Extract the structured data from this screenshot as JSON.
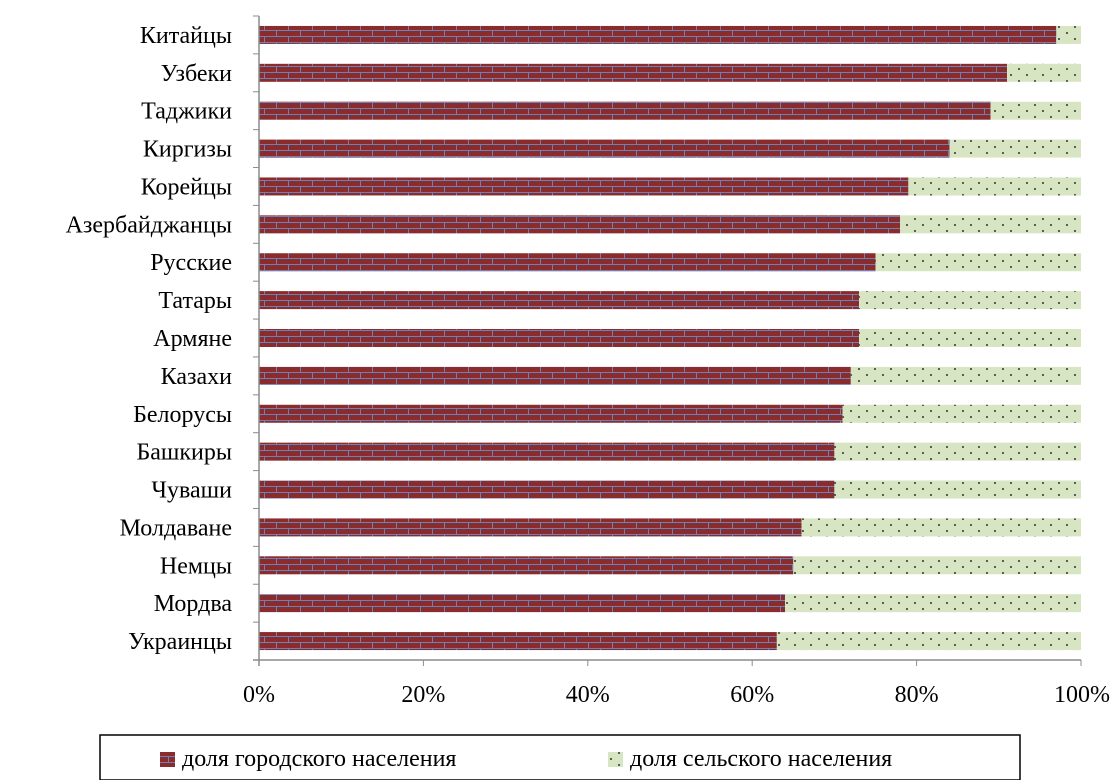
{
  "chart_data": {
    "type": "bar",
    "orientation": "horizontal",
    "stacked": "percent",
    "categories": [
      "Китайцы",
      "Узбеки",
      "Таджики",
      "Киргизы",
      "Корейцы",
      "Азербайджанцы",
      "Русские",
      "Татары",
      "Армяне",
      "Казахи",
      "Белорусы",
      "Башкиры",
      "Чуваши",
      "Молдаване",
      "Немцы",
      "Мордва",
      "Украинцы"
    ],
    "series": [
      {
        "name": "доля городского населения",
        "values": [
          97,
          91,
          89,
          84,
          79,
          78,
          75,
          73,
          73,
          72,
          71,
          70,
          70,
          66,
          65,
          64,
          63
        ]
      },
      {
        "name": "доля сельского населения",
        "values": [
          3,
          9,
          11,
          16,
          21,
          22,
          25,
          27,
          27,
          28,
          29,
          30,
          30,
          34,
          35,
          36,
          37
        ]
      }
    ],
    "x_ticks": [
      "0%",
      "20%",
      "40%",
      "60%",
      "80%",
      "100%"
    ],
    "xlim": [
      0,
      100
    ],
    "grid": false,
    "legend_position": "bottom",
    "colors": {
      "urban": "#8b2c2c",
      "urban_mortar": "#6f7fb8",
      "rural": "#d8e5c2",
      "rural_dot": "#333333"
    }
  }
}
